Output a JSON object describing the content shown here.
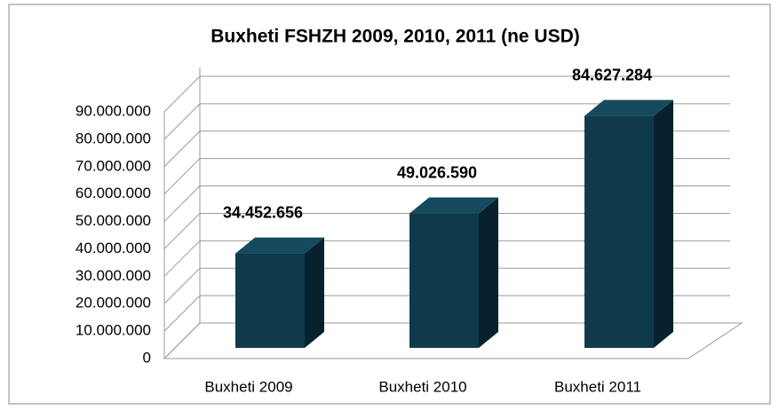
{
  "chart_data": {
    "type": "bar3d",
    "title": "Buxheti FSHZH 2009, 2010, 2011 (ne USD)",
    "categories": [
      "Buxheti 2009",
      "Buxheti 2010",
      "Buxheti 2011"
    ],
    "values": [
      34452656,
      49026590,
      84627284
    ],
    "value_labels": [
      "34.452.656",
      "49.026.590",
      "84.627.284"
    ],
    "color": "#0e3a4c",
    "ylim": [
      0,
      90000000
    ],
    "yticks": [
      0,
      {
        "value": 10000000,
        "label": "10.000.000"
      },
      {
        "value": 20000000,
        "label": "20.000.000"
      },
      {
        "value": 30000000,
        "label": "30.000.000"
      },
      {
        "value": 40000000,
        "label": "40.000.000"
      },
      {
        "value": 50000000,
        "label": "50.000.000"
      },
      {
        "value": 60000000,
        "label": "60.000.000"
      },
      {
        "value": 70000000,
        "label": "70.000.000"
      },
      {
        "value": 80000000,
        "label": "80.000.000"
      },
      {
        "value": 90000000,
        "label": "90.000.000"
      }
    ],
    "grid": true
  }
}
